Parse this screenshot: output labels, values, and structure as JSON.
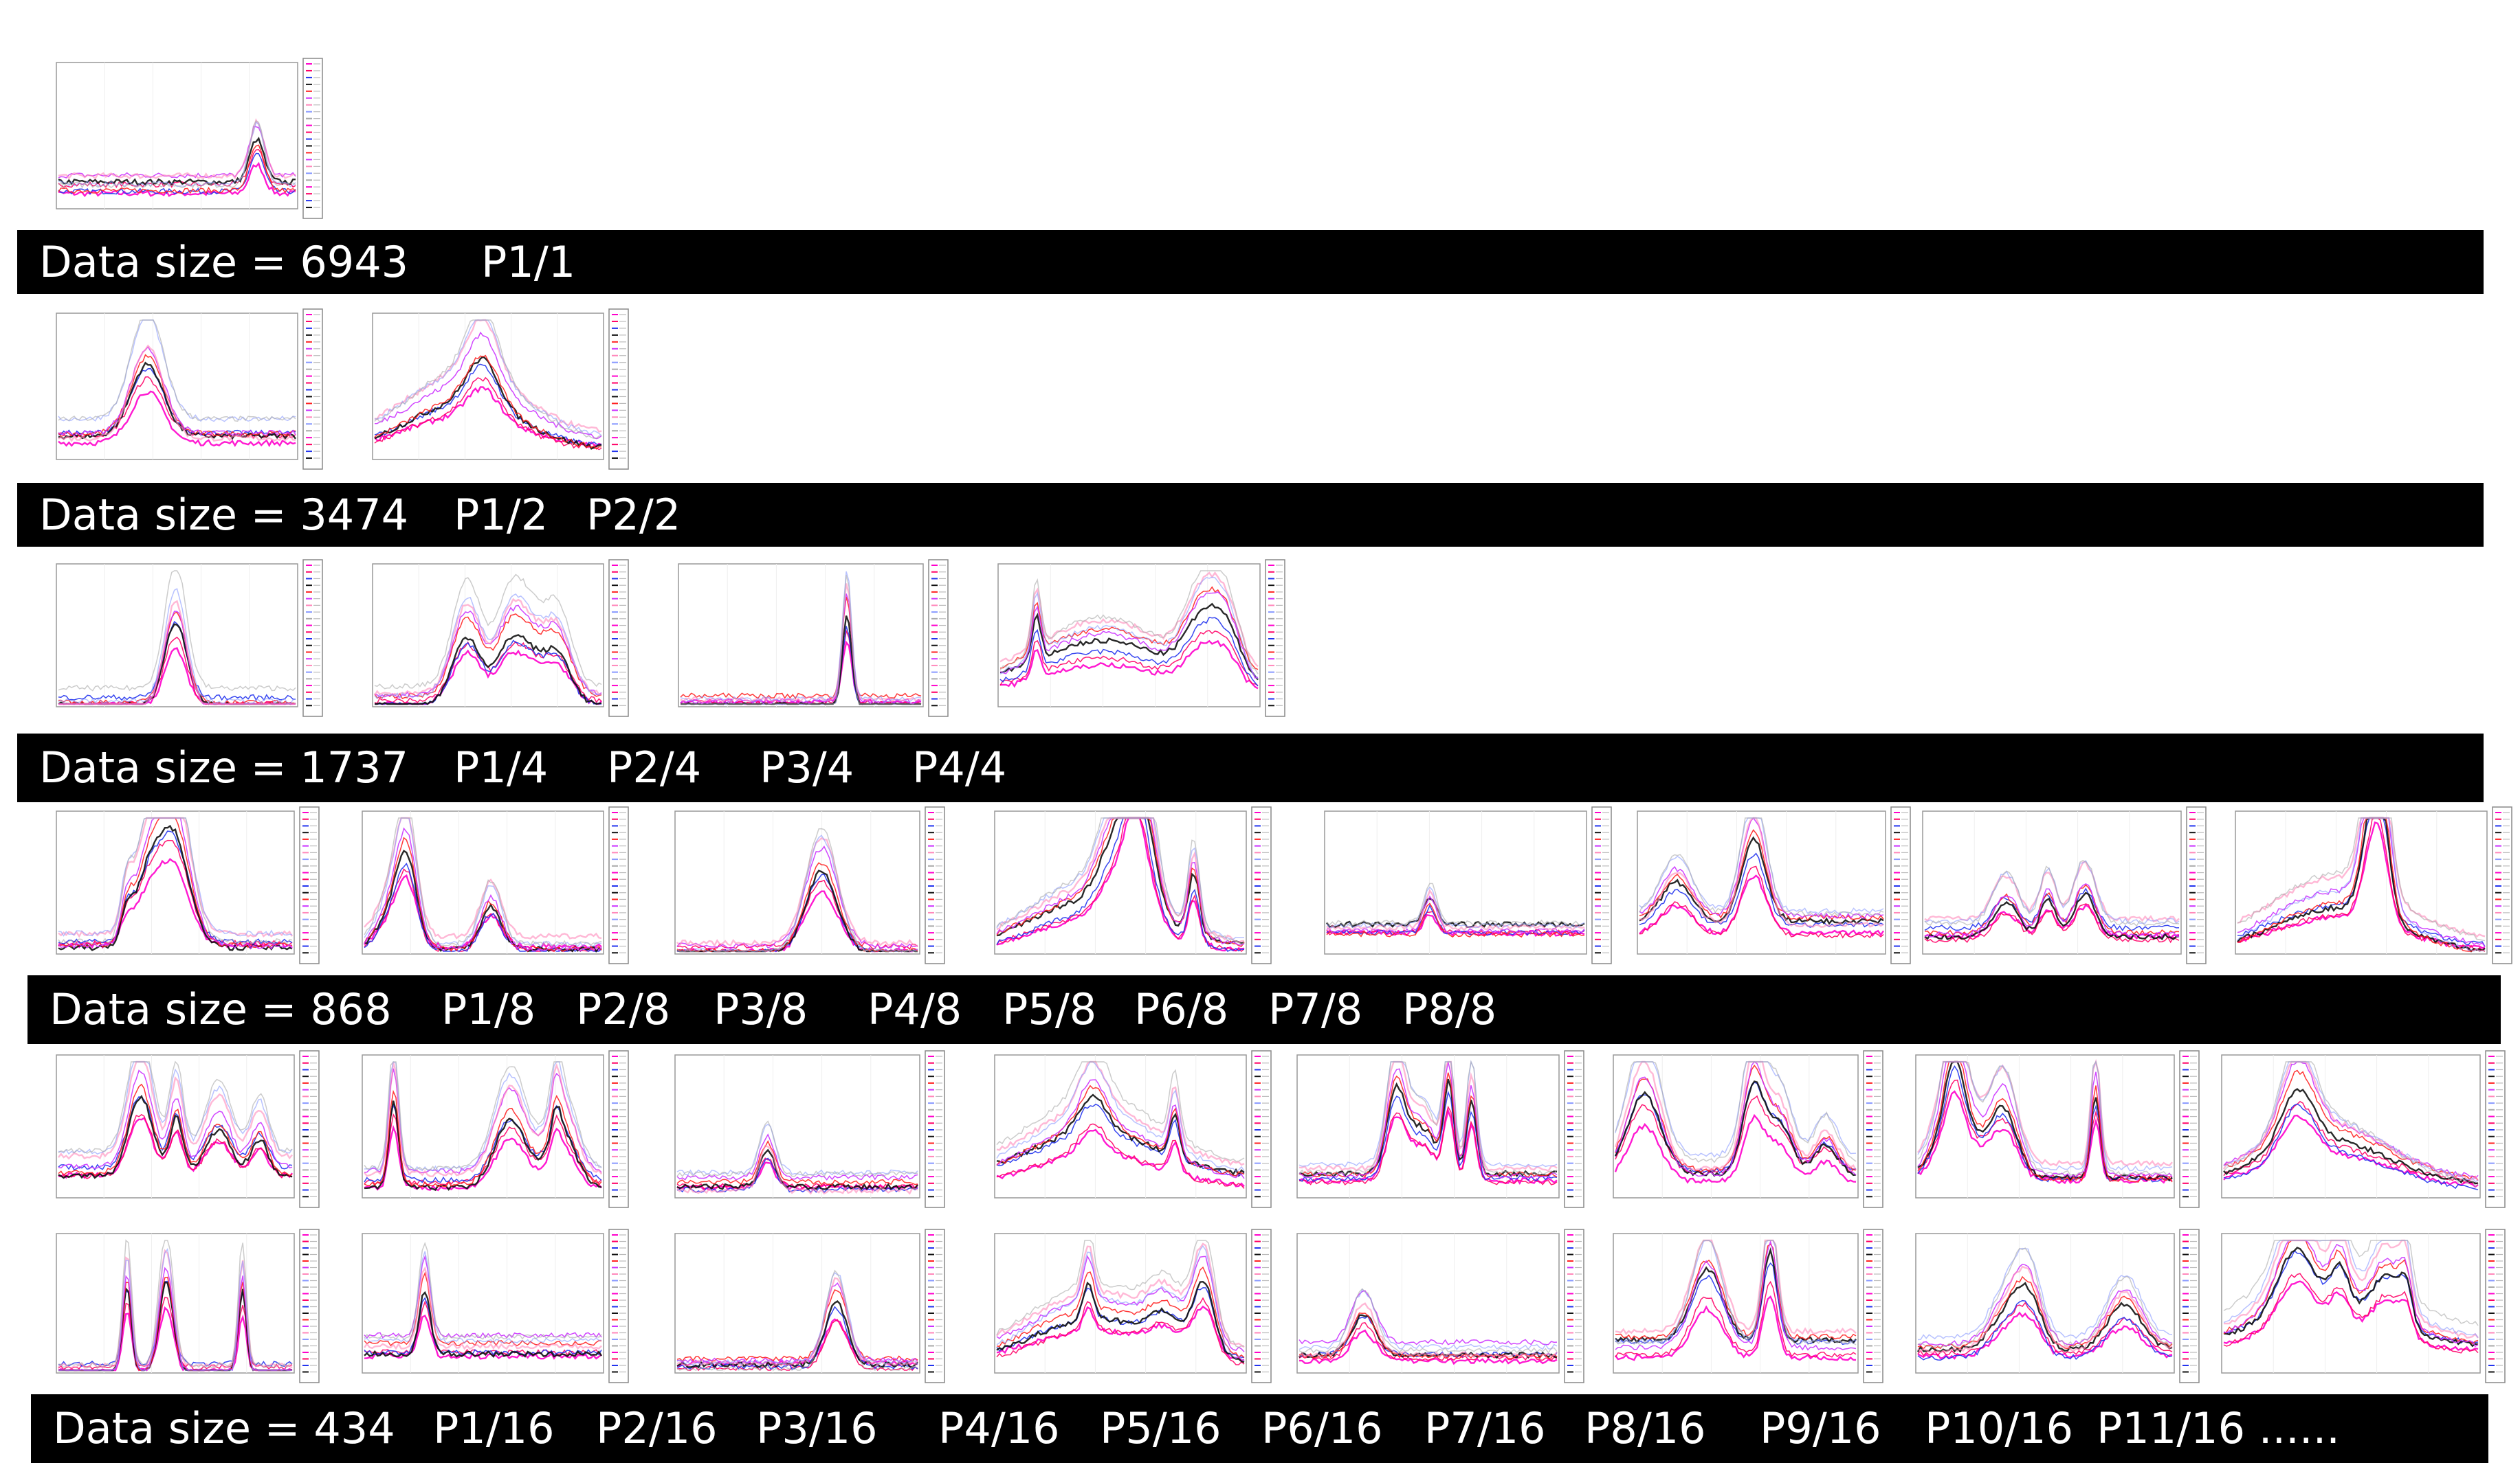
{
  "bands": [
    {
      "size_text": "Data size = 6943",
      "parts": [
        "P1/1"
      ]
    },
    {
      "size_text": "Data size = 3474",
      "parts": [
        "P1/2",
        "P2/2"
      ]
    },
    {
      "size_text": "Data size = 1737",
      "parts": [
        "P1/4",
        "P2/4",
        "P3/4",
        "P4/4"
      ]
    },
    {
      "size_text": "Data size = 868",
      "parts": [
        "P1/8",
        "P2/8",
        "P3/8",
        "P4/8",
        "P5/8",
        "P6/8",
        "P7/8",
        "P8/8"
      ]
    },
    {
      "size_text": "Data size = 434",
      "parts": [
        "P1/16",
        "P2/16",
        "P3/16",
        "P4/16",
        "P5/16",
        "P6/16",
        "P7/16",
        "P8/16",
        "P9/16",
        "P10/16",
        "P11/16 ......"
      ]
    }
  ],
  "colors": {
    "band_bg": "#000000",
    "band_text": "#ffffff",
    "spectra": [
      "#ff00cc",
      "#ff0066",
      "#2233ee",
      "#111111",
      "#ff2222",
      "#cc33ff",
      "#ff88bb",
      "#8899ff",
      "#aaaaaa"
    ]
  }
}
